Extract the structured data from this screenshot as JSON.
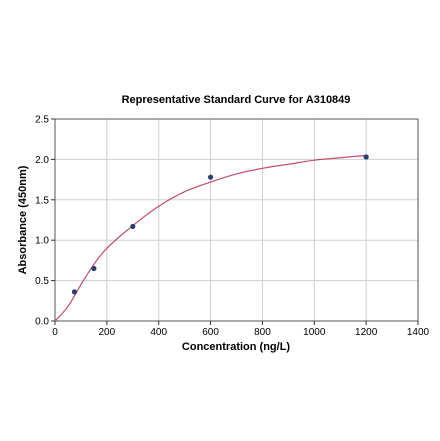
{
  "chart_data": {
    "type": "scatter",
    "title": "Representative Standard Curve for A310849",
    "xlabel": "Concentration (ng/L)",
    "ylabel": "Absorbance (450nm)",
    "xlim": [
      0,
      1400
    ],
    "ylim": [
      0,
      2.5
    ],
    "xticks": [
      0,
      200,
      400,
      600,
      800,
      1000,
      1200,
      1400
    ],
    "yticks": [
      0.0,
      0.5,
      1.0,
      1.5,
      2.0,
      2.5
    ],
    "xtick_labels": [
      "0",
      "200",
      "400",
      "600",
      "800",
      "1000",
      "1200",
      "1400"
    ],
    "ytick_labels": [
      "0.0",
      "0.5",
      "1.0",
      "1.5",
      "2.0",
      "2.5"
    ],
    "grid": true,
    "series": [
      {
        "points": [
          {
            "x": 75,
            "y": 0.36
          },
          {
            "x": 150,
            "y": 0.65
          },
          {
            "x": 300,
            "y": 1.17
          },
          {
            "x": 600,
            "y": 1.78
          },
          {
            "x": 1200,
            "y": 2.03
          }
        ]
      }
    ],
    "fit_curve": [
      {
        "x": 0,
        "y": 0.0
      },
      {
        "x": 50,
        "y": 0.18
      },
      {
        "x": 100,
        "y": 0.45
      },
      {
        "x": 150,
        "y": 0.7
      },
      {
        "x": 200,
        "y": 0.9
      },
      {
        "x": 300,
        "y": 1.18
      },
      {
        "x": 400,
        "y": 1.42
      },
      {
        "x": 500,
        "y": 1.6
      },
      {
        "x": 600,
        "y": 1.72
      },
      {
        "x": 700,
        "y": 1.82
      },
      {
        "x": 800,
        "y": 1.89
      },
      {
        "x": 900,
        "y": 1.94
      },
      {
        "x": 1000,
        "y": 1.99
      },
      {
        "x": 1100,
        "y": 2.02
      },
      {
        "x": 1200,
        "y": 2.05
      }
    ],
    "colors": {
      "points": "#2a3f6b",
      "curve": "#c0506a",
      "grid": "#d0d0d0"
    }
  }
}
